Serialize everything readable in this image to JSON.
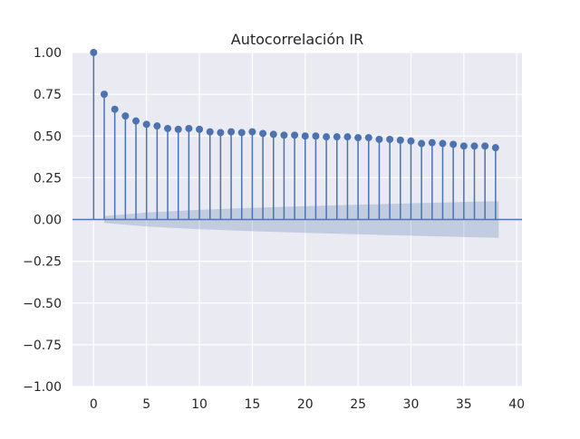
{
  "chart_data": {
    "type": "scatter",
    "title": "Autocorrelación IR",
    "xlabel": "",
    "ylabel": "",
    "xlim": [
      -2,
      40.5
    ],
    "ylim": [
      -1.0,
      1.0
    ],
    "xticks": [
      0,
      5,
      10,
      15,
      20,
      25,
      30,
      35,
      40
    ],
    "yticks": [
      -1.0,
      -0.75,
      -0.5,
      -0.25,
      0.0,
      0.25,
      0.5,
      0.75,
      1.0
    ],
    "ytick_labels": [
      "−1.00",
      "−0.75",
      "−0.50",
      "−0.25",
      "0.00",
      "0.25",
      "0.50",
      "0.75",
      "1.00"
    ],
    "grid": true,
    "lags": [
      0,
      1,
      2,
      3,
      4,
      5,
      6,
      7,
      8,
      9,
      10,
      11,
      12,
      13,
      14,
      15,
      16,
      17,
      18,
      19,
      20,
      21,
      22,
      23,
      24,
      25,
      26,
      27,
      28,
      29,
      30,
      31,
      32,
      33,
      34,
      35,
      36,
      37,
      38
    ],
    "values": [
      1.0,
      0.75,
      0.66,
      0.62,
      0.59,
      0.57,
      0.56,
      0.545,
      0.54,
      0.545,
      0.54,
      0.525,
      0.52,
      0.525,
      0.52,
      0.525,
      0.515,
      0.51,
      0.505,
      0.505,
      0.5,
      0.5,
      0.495,
      0.495,
      0.495,
      0.49,
      0.49,
      0.48,
      0.48,
      0.475,
      0.47,
      0.455,
      0.46,
      0.455,
      0.45,
      0.44,
      0.44,
      0.44,
      0.43
    ],
    "confidence_band": {
      "lags": [
        1,
        5,
        10,
        15,
        20,
        25,
        30,
        35,
        38.3
      ],
      "upper": [
        0.02,
        0.042,
        0.058,
        0.07,
        0.08,
        0.089,
        0.097,
        0.105,
        0.11
      ]
    },
    "colors": {
      "background": "#eaeaf2",
      "grid": "#ffffff",
      "stem": "#4c72b0",
      "band": "#4c72b0"
    }
  }
}
